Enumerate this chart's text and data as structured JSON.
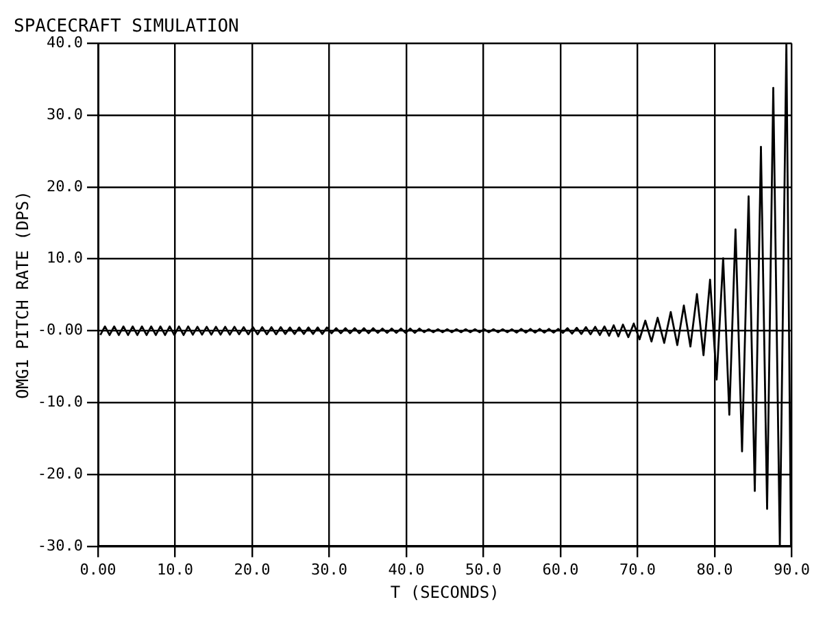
{
  "chart_data": {
    "type": "line",
    "title": "SPACECRAFT SIMULATION",
    "xlabel": "T (SECONDS)",
    "ylabel": "OMG1 PITCH RATE (DPS)",
    "xlim": [
      0,
      90
    ],
    "ylim": [
      -30,
      40
    ],
    "xticks": [
      {
        "value": 0,
        "label": "0.00"
      },
      {
        "value": 10,
        "label": "10.0"
      },
      {
        "value": 20,
        "label": "20.0"
      },
      {
        "value": 30,
        "label": "30.0"
      },
      {
        "value": 40,
        "label": "40.0"
      },
      {
        "value": 50,
        "label": "50.0"
      },
      {
        "value": 60,
        "label": "60.0"
      },
      {
        "value": 70,
        "label": "70.0"
      },
      {
        "value": 80,
        "label": "80.0"
      },
      {
        "value": 90,
        "label": "90.0"
      }
    ],
    "yticks": [
      {
        "value": -30,
        "label": "-30.0"
      },
      {
        "value": -20,
        "label": "-20.0"
      },
      {
        "value": -10,
        "label": "-10.0"
      },
      {
        "value": 0,
        "label": "-0.00"
      },
      {
        "value": 10,
        "label": "10.0"
      },
      {
        "value": 20,
        "label": "20.0"
      },
      {
        "value": 30,
        "label": "30.0"
      },
      {
        "value": 40,
        "label": "40.0"
      }
    ],
    "grid": true,
    "legend": false,
    "marker": "none",
    "line_style": "solid",
    "series": [
      {
        "color": "#000000",
        "x": [
          0.3,
          0.9,
          1.5,
          2.1,
          2.7,
          3.3,
          3.9,
          4.5,
          5.1,
          5.7,
          6.3,
          6.9,
          7.5,
          8.1,
          8.7,
          9.3,
          9.9,
          10.5,
          11.1,
          11.7,
          12.3,
          12.9,
          13.5,
          14.1,
          14.7,
          15.3,
          15.9,
          16.5,
          17.1,
          17.7,
          18.3,
          18.9,
          19.5,
          20.1,
          20.7,
          21.3,
          21.9,
          22.5,
          23.1,
          23.7,
          24.3,
          24.9,
          25.5,
          26.1,
          26.7,
          27.3,
          27.9,
          28.5,
          29.1,
          29.7,
          30.3,
          30.9,
          31.5,
          32.1,
          32.7,
          33.3,
          33.9,
          34.5,
          35.1,
          35.7,
          36.3,
          36.9,
          37.5,
          38.1,
          38.7,
          39.3,
          39.9,
          40.5,
          41.1,
          41.7,
          42.3,
          42.9,
          43.5,
          44.1,
          44.7,
          45.3,
          45.9,
          46.5,
          47.1,
          47.7,
          48.3,
          48.9,
          49.5,
          50.1,
          50.7,
          51.3,
          51.9,
          52.5,
          53.1,
          53.7,
          54.3,
          54.9,
          55.5,
          56.1,
          56.7,
          57.3,
          57.9,
          58.5,
          59.1,
          59.7,
          60.3,
          60.9,
          61.5,
          62.1,
          62.7,
          63.3,
          63.9,
          64.5,
          65.1,
          65.7,
          66.3,
          66.9,
          67.5,
          68.1,
          68.8,
          69.5,
          70.25,
          71.0,
          71.8,
          72.6,
          73.45,
          74.3,
          75.15,
          76.0,
          76.85,
          77.7,
          78.55,
          79.4,
          80.25,
          81.1,
          81.9,
          82.7,
          83.55,
          84.4,
          85.2,
          86.0,
          86.8,
          87.6,
          88.45,
          89.3,
          89.9
        ],
        "values": [
          -0.6,
          0.6,
          -0.6,
          0.6,
          -0.6,
          0.6,
          -0.6,
          0.6,
          -0.6,
          0.6,
          -0.6,
          0.6,
          -0.6,
          0.6,
          -0.6,
          0.6,
          -0.6,
          0.6,
          -0.6,
          0.6,
          -0.55,
          0.55,
          -0.55,
          0.55,
          -0.55,
          0.55,
          -0.55,
          0.55,
          -0.55,
          0.55,
          -0.5,
          0.5,
          -0.5,
          0.5,
          -0.5,
          0.5,
          -0.5,
          0.5,
          -0.5,
          0.5,
          -0.45,
          0.45,
          -0.45,
          0.45,
          -0.45,
          0.45,
          -0.45,
          0.45,
          -0.45,
          0.45,
          -0.35,
          0.35,
          -0.35,
          0.35,
          -0.35,
          0.35,
          -0.35,
          0.35,
          -0.35,
          0.35,
          -0.3,
          0.3,
          -0.3,
          0.3,
          -0.3,
          0.3,
          -0.3,
          0.3,
          -0.3,
          0.3,
          -0.2,
          0.2,
          -0.2,
          0.2,
          -0.2,
          0.2,
          -0.2,
          0.2,
          -0.2,
          0.2,
          -0.2,
          0.2,
          -0.2,
          0.2,
          -0.2,
          0.2,
          -0.2,
          0.2,
          -0.2,
          0.2,
          -0.25,
          0.25,
          -0.25,
          0.25,
          -0.25,
          0.25,
          -0.25,
          0.25,
          -0.25,
          0.25,
          -0.3,
          0.35,
          -0.4,
          0.4,
          -0.45,
          0.5,
          -0.5,
          0.55,
          -0.6,
          0.6,
          -0.7,
          0.75,
          -0.8,
          0.85,
          -0.9,
          1.0,
          -1.2,
          1.4,
          -1.5,
          1.8,
          -1.7,
          2.6,
          -2.0,
          3.5,
          -2.2,
          5.1,
          -3.4,
          7.1,
          -6.8,
          10.1,
          -11.7,
          14.1,
          -16.8,
          18.7,
          -22.3,
          25.6,
          -24.8,
          33.8,
          -30,
          40,
          -30
        ]
      }
    ]
  }
}
